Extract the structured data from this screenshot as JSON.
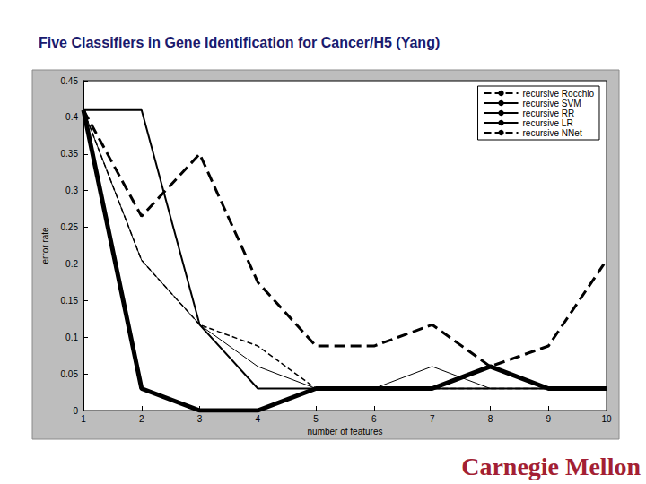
{
  "chart_data": {
    "type": "line",
    "title": "Five Classifiers in Gene Identification for Cancer/H5 (Yang)",
    "x_label": "number of features",
    "y_label": "error rate",
    "annotations": [
      "Carnegie Mellon"
    ],
    "x": [
      1,
      2,
      3,
      4,
      5,
      6,
      7,
      8,
      9,
      10
    ],
    "xlim": [
      1,
      10
    ],
    "xticks": [
      1,
      2,
      3,
      4,
      5,
      6,
      7,
      8,
      9,
      10
    ],
    "ylim": [
      0,
      0.45
    ],
    "yticks": [
      0,
      0.05,
      0.1,
      0.15,
      0.2,
      0.25,
      0.3,
      0.35,
      0.4,
      0.45
    ],
    "grid": false,
    "legend": "upper right",
    "series": [
      {
        "name": "recursive Rocchio",
        "color": "#000000",
        "line_style": "dashed",
        "values": [
          0.41,
          0.265,
          0.35,
          0.175,
          0.088,
          0.088,
          0.117,
          0.06,
          0.088,
          0.205
        ]
      },
      {
        "name": "recursive SVM",
        "color": "#000000",
        "line_style": "solid",
        "values": [
          0.41,
          0.41,
          0.117,
          0.03,
          0.03,
          0.03,
          0.03,
          0.03,
          0.03,
          0.03
        ]
      },
      {
        "name": "recursive RR",
        "color": "#000000",
        "line_style": "solid",
        "values": [
          0.41,
          0.03,
          0,
          0,
          0.03,
          0.03,
          0.03,
          0.06,
          0.03,
          0.03
        ]
      },
      {
        "name": "recursive LR",
        "color": "#000000",
        "line_style": "solid",
        "values": [
          0.41,
          0.205,
          0.117,
          0.06,
          0.03,
          0.03,
          0.06,
          0.03,
          0.03,
          0.03
        ]
      },
      {
        "name": "recursive NNet",
        "color": "#000000",
        "line_style": "dashed",
        "values": [
          0.41,
          0.205,
          0.117,
          0.088,
          0.03,
          0.03,
          0.03,
          0.03,
          0.03,
          0.03
        ]
      }
    ]
  }
}
